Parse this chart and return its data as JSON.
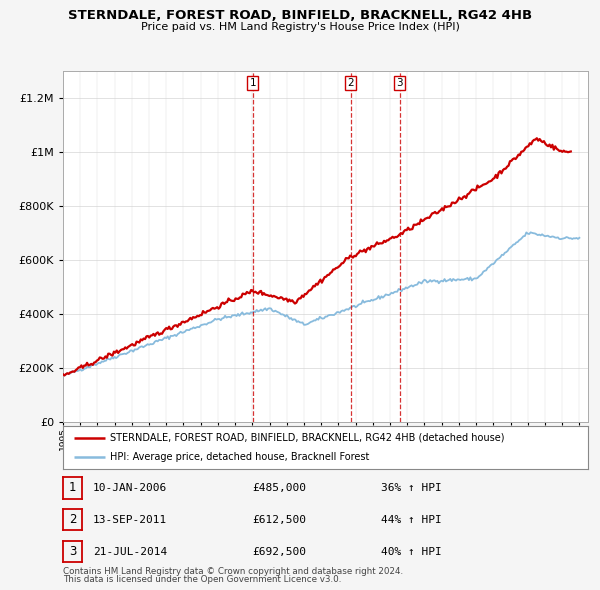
{
  "title": "STERNDALE, FOREST ROAD, BINFIELD, BRACKNELL, RG42 4HB",
  "subtitle": "Price paid vs. HM Land Registry's House Price Index (HPI)",
  "legend_line1": "STERNDALE, FOREST ROAD, BINFIELD, BRACKNELL, RG42 4HB (detached house)",
  "legend_line2": "HPI: Average price, detached house, Bracknell Forest",
  "footer1": "Contains HM Land Registry data © Crown copyright and database right 2024.",
  "footer2": "This data is licensed under the Open Government Licence v3.0.",
  "transactions": [
    {
      "num": 1,
      "date": "10-JAN-2006",
      "price": "£485,000",
      "change": "36% ↑ HPI",
      "year": 2006.03
    },
    {
      "num": 2,
      "date": "13-SEP-2011",
      "price": "£612,500",
      "change": "44% ↑ HPI",
      "year": 2011.71
    },
    {
      "num": 3,
      "date": "21-JUL-2014",
      "price": "£692,500",
      "change": "40% ↑ HPI",
      "year": 2014.55
    }
  ],
  "house_color": "#cc0000",
  "hpi_color": "#88bbdd",
  "vline_color": "#cc0000",
  "background_color": "#f5f5f5",
  "plot_background": "#ffffff",
  "ylim": [
    0,
    1300000
  ],
  "xlim_start": 1995,
  "xlim_end": 2025.5,
  "yticks": [
    0,
    200000,
    400000,
    600000,
    800000,
    1000000,
    1200000
  ],
  "ytick_labels": [
    "£0",
    "£200K",
    "£400K",
    "£600K",
    "£800K",
    "£1M",
    "£1.2M"
  ]
}
